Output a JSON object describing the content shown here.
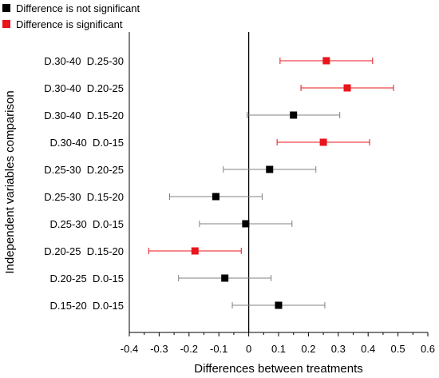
{
  "chart_data": {
    "type": "scatter",
    "xlabel": "Differences between treatments",
    "ylabel": "Independent variables comparison",
    "xlim": [
      -0.4,
      0.6
    ],
    "xticks": [
      "-0.4",
      "-0.3",
      "-0.2",
      "-0.1",
      "0",
      "0.1",
      "0.2",
      "0.3",
      "0.4",
      "0.5",
      "0.6"
    ],
    "zero_line": 0,
    "legend": [
      {
        "label": "Difference is not significant",
        "color": "#000000"
      },
      {
        "label": "Difference is significant",
        "color": "#e8151b"
      }
    ],
    "colors": {
      "not_significant": "#000000",
      "significant": "#e8151b",
      "ns_errorbar": "#808080",
      "sig_errorbar": "#e8151b"
    },
    "points": [
      {
        "label": "D.30-40  D.25-30",
        "estimate": 0.26,
        "lower": 0.105,
        "upper": 0.415,
        "significant": true
      },
      {
        "label": "D.30-40  D.20-25",
        "estimate": 0.33,
        "lower": 0.175,
        "upper": 0.485,
        "significant": true
      },
      {
        "label": "D.30-40  D.15-20",
        "estimate": 0.15,
        "lower": -0.005,
        "upper": 0.305,
        "significant": false
      },
      {
        "label": "D.30-40  D.0-15",
        "estimate": 0.25,
        "lower": 0.095,
        "upper": 0.405,
        "significant": true
      },
      {
        "label": "D.25-30  D.20-25",
        "estimate": 0.07,
        "lower": -0.085,
        "upper": 0.225,
        "significant": false
      },
      {
        "label": "D.25-30  D.15-20",
        "estimate": -0.11,
        "lower": -0.265,
        "upper": 0.045,
        "significant": false
      },
      {
        "label": "D.25-30  D.0-15",
        "estimate": -0.01,
        "lower": -0.165,
        "upper": 0.145,
        "significant": false
      },
      {
        "label": "D.20-25  D.15-20",
        "estimate": -0.18,
        "lower": -0.335,
        "upper": -0.025,
        "significant": true
      },
      {
        "label": "D.20-25  D.0-15",
        "estimate": -0.08,
        "lower": -0.235,
        "upper": 0.075,
        "significant": false
      },
      {
        "label": "D.15-20  D.0-15",
        "estimate": 0.1,
        "lower": -0.055,
        "upper": 0.255,
        "significant": false
      }
    ]
  }
}
